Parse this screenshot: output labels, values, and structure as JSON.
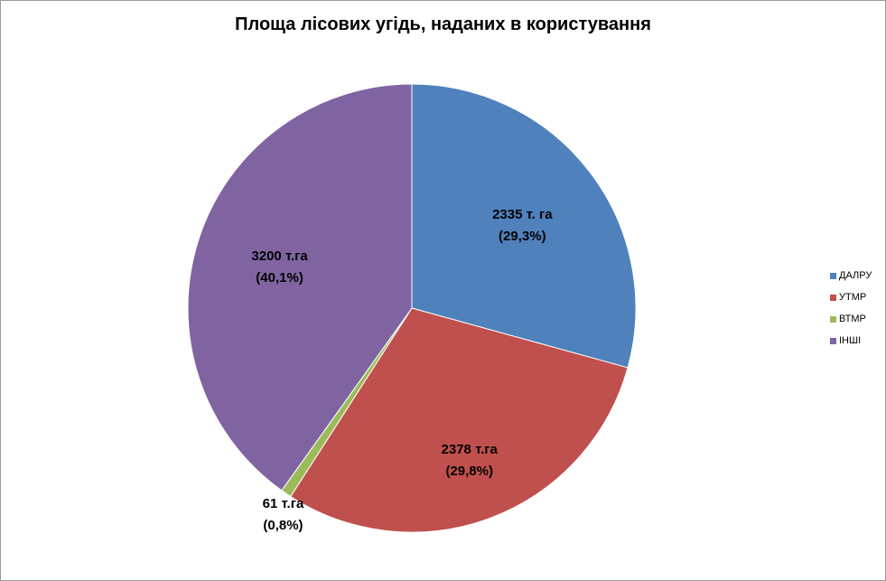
{
  "chart_data": {
    "type": "pie",
    "title": "Площа лісових угідь, наданих в користування",
    "slices": [
      {
        "name": "ДАЛРУ",
        "value": 2335,
        "percent": 29.3,
        "color": "#4f81bd",
        "value_label": "2335 т. га",
        "percent_label": "(29,3%)"
      },
      {
        "name": "УТМР",
        "value": 2378,
        "percent": 29.8,
        "color": "#c0504d",
        "value_label": "2378 т.га",
        "percent_label": "(29,8%)"
      },
      {
        "name": "ВТМР",
        "value": 61,
        "percent": 0.8,
        "color": "#9bbb59",
        "value_label": "61 т.га",
        "percent_label": "(0,8%)"
      },
      {
        "name": "ІНШІ",
        "value": 3200,
        "percent": 40.1,
        "color": "#8064a2",
        "value_label": "3200 т.га",
        "percent_label": "(40,1%)"
      }
    ],
    "legend_position": "right"
  }
}
